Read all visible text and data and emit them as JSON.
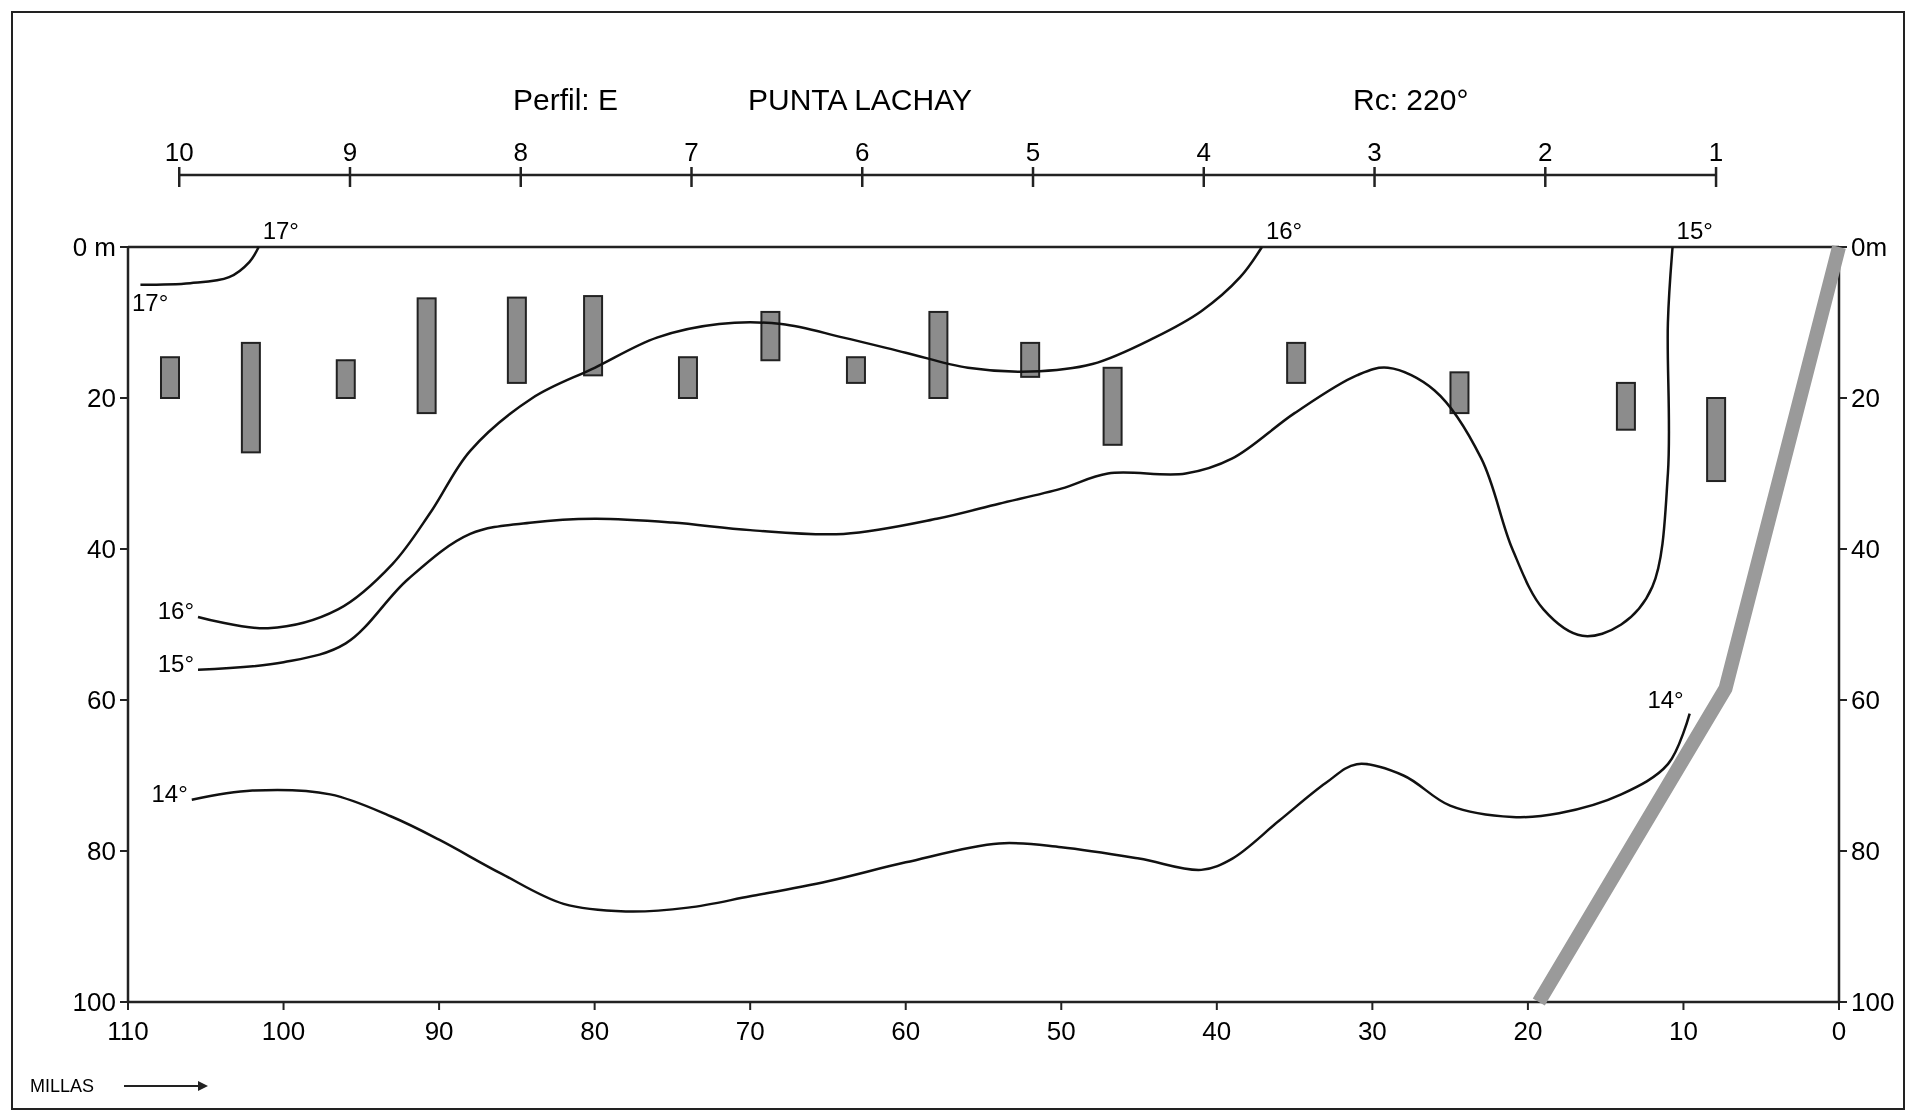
{
  "chart_data": {
    "type": "line",
    "title": "Perfil: E",
    "subtitle": "PUNTA LACHAY",
    "annotations": [
      "Rc: 220°"
    ],
    "xlabel": "MILLAS",
    "xlim": [
      110,
      0
    ],
    "xticks": [
      110,
      100,
      90,
      80,
      70,
      60,
      50,
      40,
      30,
      20,
      10,
      0
    ],
    "x2lim": [
      10.3,
      0.28
    ],
    "x2ticks": [
      10,
      9,
      8,
      7,
      6,
      5,
      4,
      3,
      2,
      1
    ],
    "ylim": [
      100,
      0
    ],
    "yticks": [
      {
        "value": 0,
        "label": "0 m"
      },
      20,
      40,
      60,
      80,
      100
    ],
    "y2lim": [
      100,
      0
    ],
    "y2ticks": [
      {
        "value": 0,
        "label": "0m"
      },
      20,
      40,
      60,
      80,
      100
    ],
    "grid": false,
    "legend": false,
    "marker": "none",
    "line_style": "solid",
    "series": [
      {
        "type": "bar",
        "color": "#8c8c8c",
        "x": [
          107.3,
          102.1,
          96,
          90.8,
          85,
          80.1,
          74,
          68.7,
          63.2,
          57.9,
          52,
          46.7,
          34.9,
          24.4,
          13.7,
          7.9
        ],
        "base": [
          14.6,
          12.7,
          15,
          6.8,
          6.7,
          6.5,
          14.6,
          8.6,
          14.6,
          8.6,
          12.7,
          16,
          12.7,
          16.6,
          18,
          20
        ],
        "values": [
          5.4,
          14.5,
          5,
          15.2,
          11.3,
          10.5,
          5.4,
          6.4,
          3.4,
          11.4,
          4.5,
          10.2,
          5.3,
          5.4,
          6.2,
          11
        ]
      },
      {
        "name": "17°",
        "color": "#111111",
        "x": [
          109.2,
          106,
          103.5,
          102.2,
          101.6
        ],
        "values": [
          5,
          4.8,
          4,
          2,
          0
        ]
      },
      {
        "name": "16°",
        "color": "#111111",
        "x": [
          105.5,
          101,
          96.5,
          93,
          90.5,
          88,
          84,
          80,
          76,
          72,
          68,
          64,
          60,
          56,
          52,
          48,
          44,
          41,
          38.5,
          37.1
        ],
        "values": [
          49,
          50.5,
          48,
          42,
          35,
          27,
          20,
          16,
          12,
          10.2,
          10.2,
          12,
          14,
          16,
          16.5,
          15.5,
          12,
          8.5,
          4,
          0
        ]
      },
      {
        "name": "15°",
        "color": "#111111",
        "x": [
          105.5,
          100,
          96,
          92,
          88,
          84,
          80,
          75,
          70,
          64,
          58,
          54,
          50,
          47,
          42,
          39,
          35,
          31,
          29,
          26,
          23,
          21,
          19,
          16.5,
          14,
          12,
          11,
          11,
          10.7
        ],
        "values": [
          56,
          55,
          52.5,
          44,
          38,
          36.5,
          36,
          36.5,
          37.5,
          38,
          36,
          34,
          32,
          30,
          30,
          28,
          22,
          17,
          16,
          19,
          28,
          40,
          48,
          51.5,
          50,
          45,
          30,
          10,
          0
        ]
      },
      {
        "name": "14°",
        "color": "#111111",
        "x": [
          105.9,
          102,
          97,
          93,
          90,
          86,
          82,
          78,
          74,
          70,
          65,
          60,
          54,
          50,
          45,
          41,
          39,
          36,
          33,
          31,
          28,
          25,
          21,
          18,
          14,
          11,
          9.6
        ],
        "values": [
          73.2,
          72,
          72.5,
          75.5,
          78.5,
          83,
          87,
          88,
          87.5,
          86,
          84,
          81.5,
          79,
          79.5,
          81,
          82.5,
          81,
          76,
          71,
          68.5,
          70,
          74,
          75.5,
          75,
          72.5,
          68.5,
          61.8
        ]
      },
      {
        "color": "#9a9a9a",
        "x": [
          0,
          7.3,
          19.3
        ],
        "values": [
          0,
          58.5,
          100
        ]
      }
    ]
  }
}
